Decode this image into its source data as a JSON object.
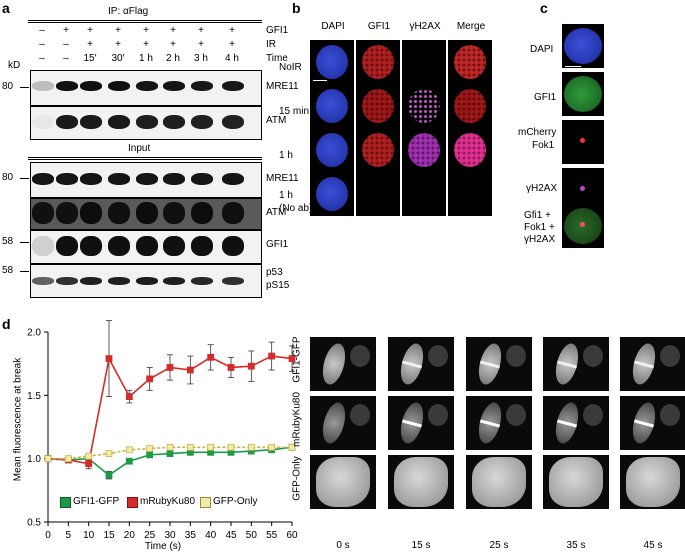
{
  "panel_a": {
    "label": "a",
    "ip_header": "IP: αFlag",
    "row_labels": [
      "GFI1",
      "IR",
      "Time"
    ],
    "gfi1_signs": [
      "–",
      "+",
      "+",
      "+",
      "+",
      "+",
      "+",
      "+"
    ],
    "ir_signs": [
      "–",
      "–",
      "+",
      "+",
      "+",
      "+",
      "+",
      "+"
    ],
    "time_labels": [
      "–",
      "–",
      "15′",
      "30′",
      "1 h",
      "2 h",
      "3 h",
      "4 h"
    ],
    "kd_label": "kD",
    "input_header": "Input",
    "markers": [
      "80",
      "80",
      "58",
      "58"
    ],
    "blots": [
      {
        "name": "MRE11"
      },
      {
        "name": "ATM"
      },
      {
        "name": "MRE11"
      },
      {
        "name": "ATM"
      },
      {
        "name": "GFI1"
      },
      {
        "name": "p53",
        "name2": "pS15"
      }
    ]
  },
  "panel_b": {
    "label": "b",
    "columns": [
      "DAPI",
      "GFI1",
      "γH2AX",
      "Merge"
    ],
    "rows": [
      "NoIR",
      "15 min",
      "1 h",
      "1 h",
      "(No ab)"
    ]
  },
  "panel_c": {
    "label": "c",
    "rows": [
      "DAPI",
      "GFI1",
      "mCherry",
      "Fok1",
      "γH2AX",
      "Gfi1 +",
      "Fok1 +",
      "γH2AX"
    ]
  },
  "panel_d": {
    "label": "d",
    "live_rows": [
      "GFI1-GFP",
      "mRubyKu80",
      "GFP-Only"
    ],
    "live_times": [
      "0 s",
      "15 s",
      "25 s",
      "35 s",
      "45 s"
    ]
  },
  "chart_data": {
    "type": "line",
    "xlabel": "Time (s)",
    "ylabel": "Mean fluorescence at break",
    "xlim": [
      0,
      60
    ],
    "ylim": [
      0.5,
      2.0
    ],
    "x": [
      0,
      5,
      10,
      15,
      20,
      25,
      30,
      35,
      40,
      45,
      50,
      55,
      60
    ],
    "xticks": [
      0,
      5,
      10,
      15,
      20,
      25,
      30,
      35,
      40,
      45,
      50,
      55,
      60
    ],
    "yticks": [
      0.5,
      1.0,
      1.5,
      2.0
    ],
    "ytick_labels": [
      "0.5",
      "1.0",
      "1.5",
      "2.0"
    ],
    "legend_position": "bottom-left",
    "series": [
      {
        "name": "GFI1-GFP",
        "color": "#1e9a46",
        "fill": "#1e9a46",
        "values": [
          1.0,
          0.99,
          1.0,
          0.87,
          0.98,
          1.03,
          1.04,
          1.05,
          1.05,
          1.05,
          1.06,
          1.07,
          1.09
        ],
        "err": [
          0.01,
          0.02,
          0.03,
          0.03,
          0.02,
          0.02,
          0.02,
          0.02,
          0.02,
          0.02,
          0.02,
          0.02,
          0.02
        ]
      },
      {
        "name": "mRubyKu80",
        "color": "#d42b2b",
        "fill": "#d42b2b",
        "values": [
          1.0,
          0.99,
          0.96,
          1.79,
          1.49,
          1.63,
          1.72,
          1.7,
          1.8,
          1.72,
          1.73,
          1.81,
          1.79
        ],
        "err": [
          0.01,
          0.02,
          0.04,
          0.3,
          0.05,
          0.09,
          0.1,
          0.11,
          0.1,
          0.08,
          0.12,
          0.11,
          0.1
        ]
      },
      {
        "name": "GFP-Only",
        "color": "#c9b24a",
        "fill": "#f2eaa8",
        "values": [
          1.0,
          1.0,
          1.02,
          1.04,
          1.07,
          1.08,
          1.09,
          1.09,
          1.09,
          1.09,
          1.09,
          1.09,
          1.09
        ],
        "err": [
          0.01,
          0.01,
          0.01,
          0.01,
          0.01,
          0.01,
          0.01,
          0.01,
          0.01,
          0.01,
          0.01,
          0.01,
          0.01
        ]
      }
    ]
  }
}
